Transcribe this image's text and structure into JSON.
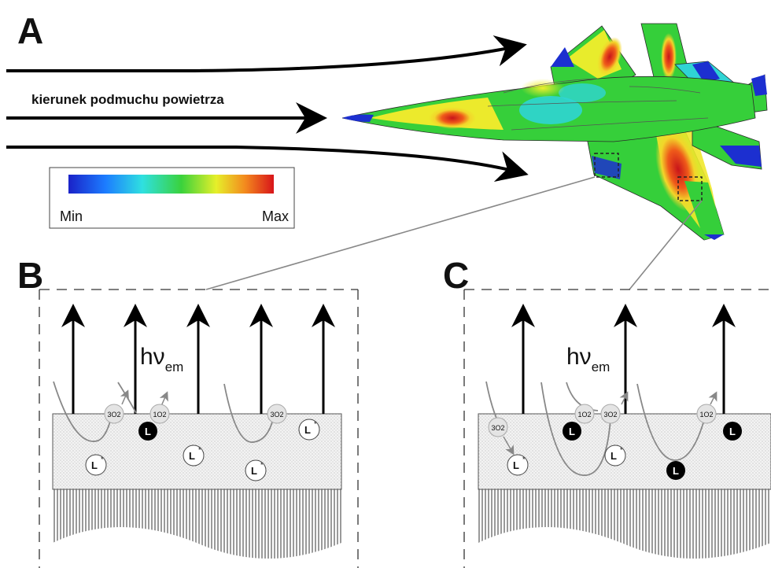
{
  "panels": {
    "a": "A",
    "b": "B",
    "c": "C"
  },
  "flow_label": "kierunek podmuchu powietrza",
  "colorbar": {
    "min_label": "Min",
    "max_label": "Max"
  },
  "emission": {
    "main": "hν",
    "sub": "em"
  },
  "molecules": {
    "excited": "L",
    "excited_mark": "*",
    "quencher": "L",
    "triplet_oxygen": "3O2",
    "singlet_oxygen": "1O2"
  },
  "colors": {
    "scale_low": "#1d2fcf",
    "scale_mid": "#37d24a",
    "scale_high": "#d61e1e"
  }
}
